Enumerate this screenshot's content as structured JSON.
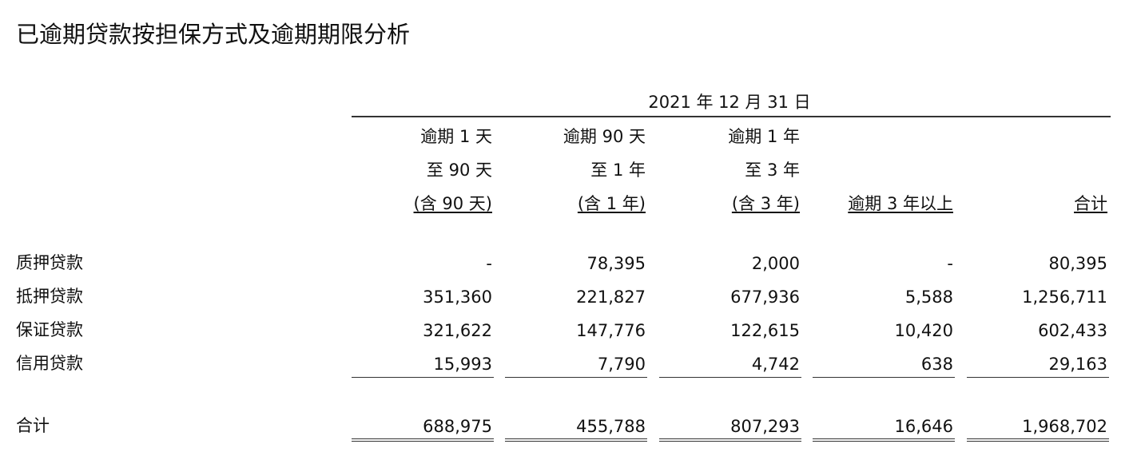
{
  "title": "已逾期贷款按担保方式及逾期期限分析",
  "period": "2021 年 12 月 31 日",
  "columns": [
    {
      "lines": [
        "逾期 1 天",
        "至 90 天",
        "(含 90 天)"
      ]
    },
    {
      "lines": [
        "逾期 90 天",
        "至 1 年",
        "(含 1 年)"
      ]
    },
    {
      "lines": [
        "逾期 1 年",
        "至 3 年",
        "(含 3 年)"
      ]
    },
    {
      "lines": [
        "",
        "",
        "逾期 3 年以上"
      ]
    },
    {
      "lines": [
        "",
        "",
        "合计"
      ]
    }
  ],
  "rows": [
    {
      "label": "质押贷款",
      "values": [
        "-",
        "78,395",
        "2,000",
        "-",
        "80,395"
      ]
    },
    {
      "label": "抵押贷款",
      "values": [
        "351,360",
        "221,827",
        "677,936",
        "5,588",
        "1,256,711"
      ]
    },
    {
      "label": "保证贷款",
      "values": [
        "321,622",
        "147,776",
        "122,615",
        "10,420",
        "602,433"
      ]
    },
    {
      "label": "信用贷款",
      "values": [
        "15,993",
        "7,790",
        "4,742",
        "638",
        "29,163"
      ]
    }
  ],
  "total": {
    "label": "合计",
    "values": [
      "688,975",
      "455,788",
      "807,293",
      "16,646",
      "1,968,702"
    ]
  }
}
